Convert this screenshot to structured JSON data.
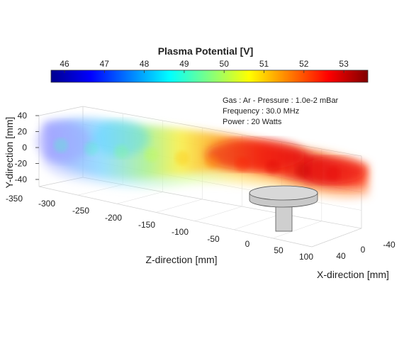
{
  "chart_data": {
    "type": "heatmap",
    "title": "Plasma Potential [V]",
    "colorbar": {
      "ticks": [
        "46",
        "47",
        "48",
        "49",
        "50",
        "51",
        "52",
        "53"
      ],
      "colormap": "jet"
    },
    "annotations": [
      "Gas : Ar - Pressure : 1.0e-2 mBar",
      "Frequency : 30.0 MHz",
      "Power : 20 Watts"
    ],
    "xlabel": "X-direction [mm]",
    "ylabel": "Y-direction [mm]",
    "zlabel": "Z-direction [mm]",
    "x_ticks": [
      "40",
      "0",
      "-40"
    ],
    "y_ticks": [
      "40",
      "20",
      "0",
      "-20",
      "-40"
    ],
    "z_ticks": [
      "-350",
      "-300",
      "-250",
      "-200",
      "-150",
      "-100",
      "-50",
      "0",
      "50",
      "100"
    ],
    "trend": {
      "z_mm": [
        -350,
        -300,
        -250,
        -200,
        -150,
        -100,
        -50,
        0,
        50,
        100
      ],
      "potential_v": [
        49.0,
        49.0,
        49.5,
        50.0,
        51.0,
        51.5,
        52.3,
        52.8,
        53.0,
        52.7
      ]
    }
  }
}
